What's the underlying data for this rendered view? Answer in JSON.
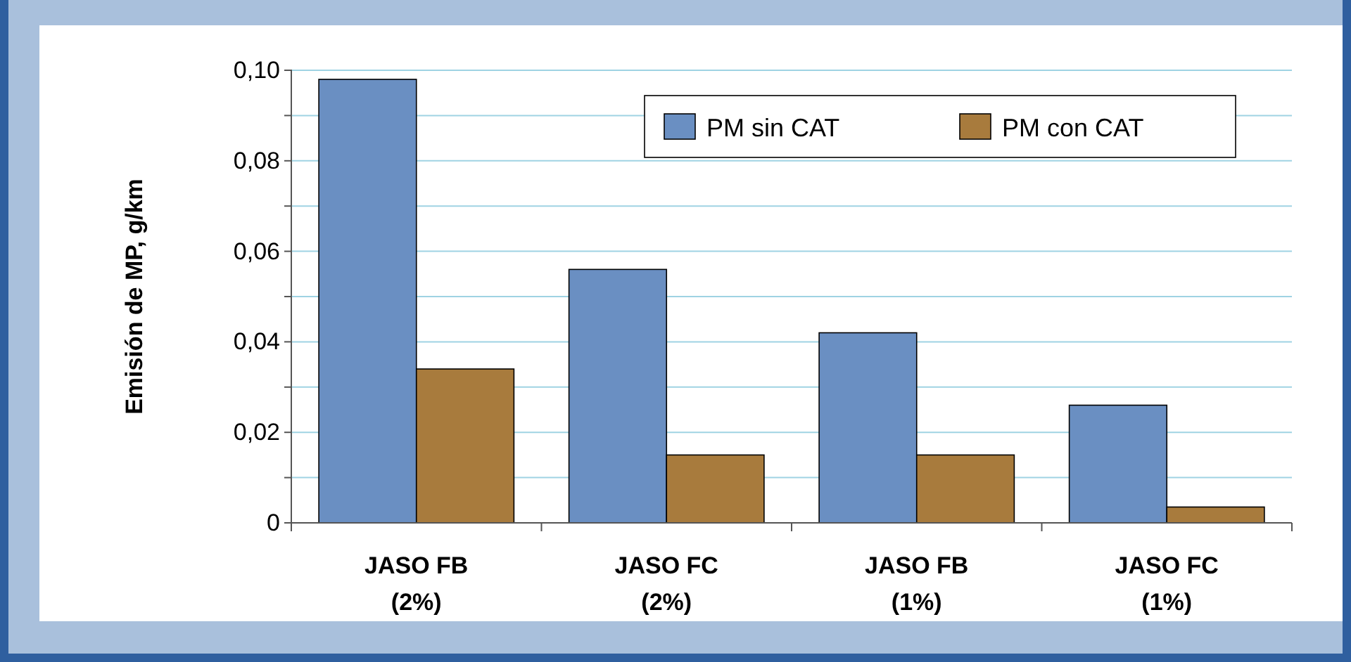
{
  "chart_data": {
    "type": "bar",
    "ylabel": "Emisión de MP, g/km",
    "categories": [
      "JASO FB\n(2%)",
      "JASO FC\n(2%)",
      "JASO FB\n(1%)",
      "JASO FC\n(1%)"
    ],
    "series": [
      {
        "name": "PM sin CAT",
        "color": "#6a8fc2",
        "values": [
          0.098,
          0.056,
          0.042,
          0.026
        ]
      },
      {
        "name": "PM con CAT",
        "color": "#a87b3d",
        "values": [
          0.034,
          0.015,
          0.015,
          0.0035
        ]
      }
    ],
    "ylim": [
      0,
      0.1
    ],
    "yticks": [
      0,
      {
        "value": 0.01,
        "label": null
      },
      {
        "value": 0.02,
        "label": "0,02"
      },
      {
        "value": 0.03,
        "label": null
      },
      {
        "value": 0.04,
        "label": "0,04"
      },
      {
        "value": 0.05,
        "label": null
      },
      {
        "value": 0.06,
        "label": "0,06"
      },
      {
        "value": 0.07,
        "label": null
      },
      {
        "value": 0.08,
        "label": "0,08"
      },
      {
        "value": 0.09,
        "label": null
      },
      {
        "value": 0.1,
        "label": "0,10"
      }
    ],
    "grid": "y",
    "legend": "top right"
  }
}
